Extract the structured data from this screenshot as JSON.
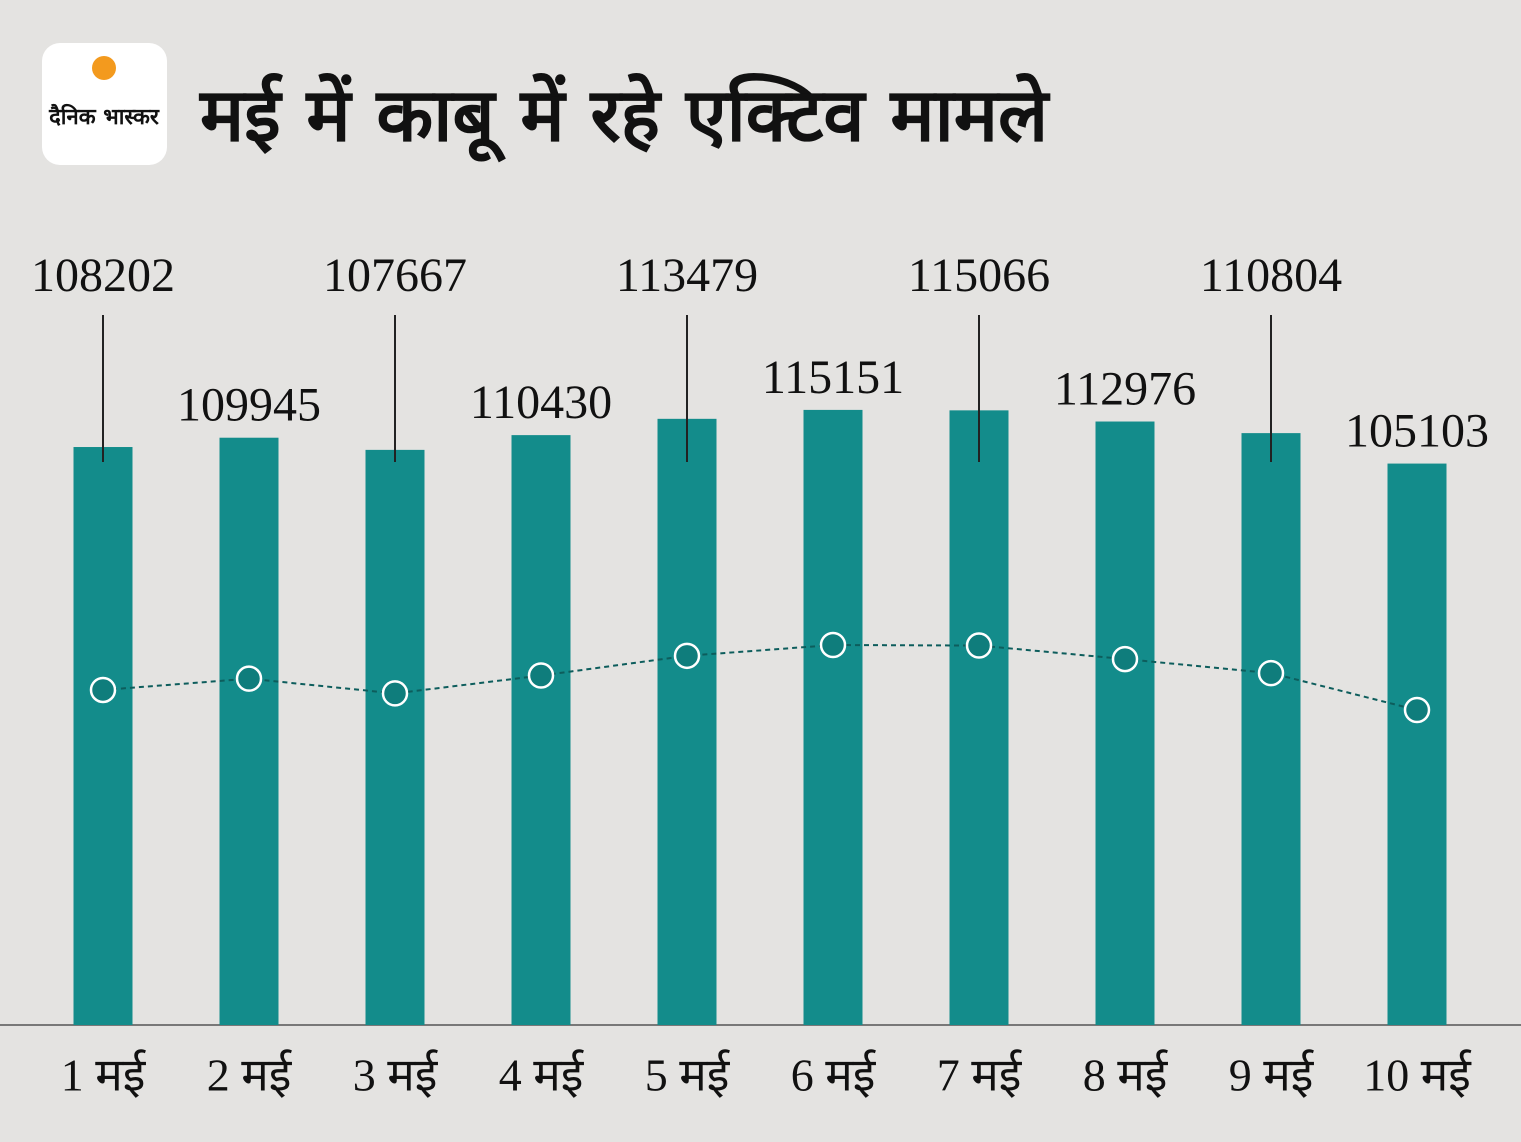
{
  "logo": "दैनिक भास्कर",
  "chart_data": {
    "type": "bar",
    "title": "मई में काबू में रहे एक्टिव मामले",
    "categories": [
      "1 मई",
      "2 मई",
      "3 मई",
      "4 मई",
      "5 मई",
      "6 मई",
      "7 मई",
      "8 मई",
      "9 मई",
      "10 मई"
    ],
    "values": [
      108202,
      109945,
      107667,
      110430,
      113479,
      115151,
      115066,
      112976,
      110804,
      105103
    ],
    "color": "#138c8b",
    "ylim": [
      0,
      120000
    ]
  }
}
